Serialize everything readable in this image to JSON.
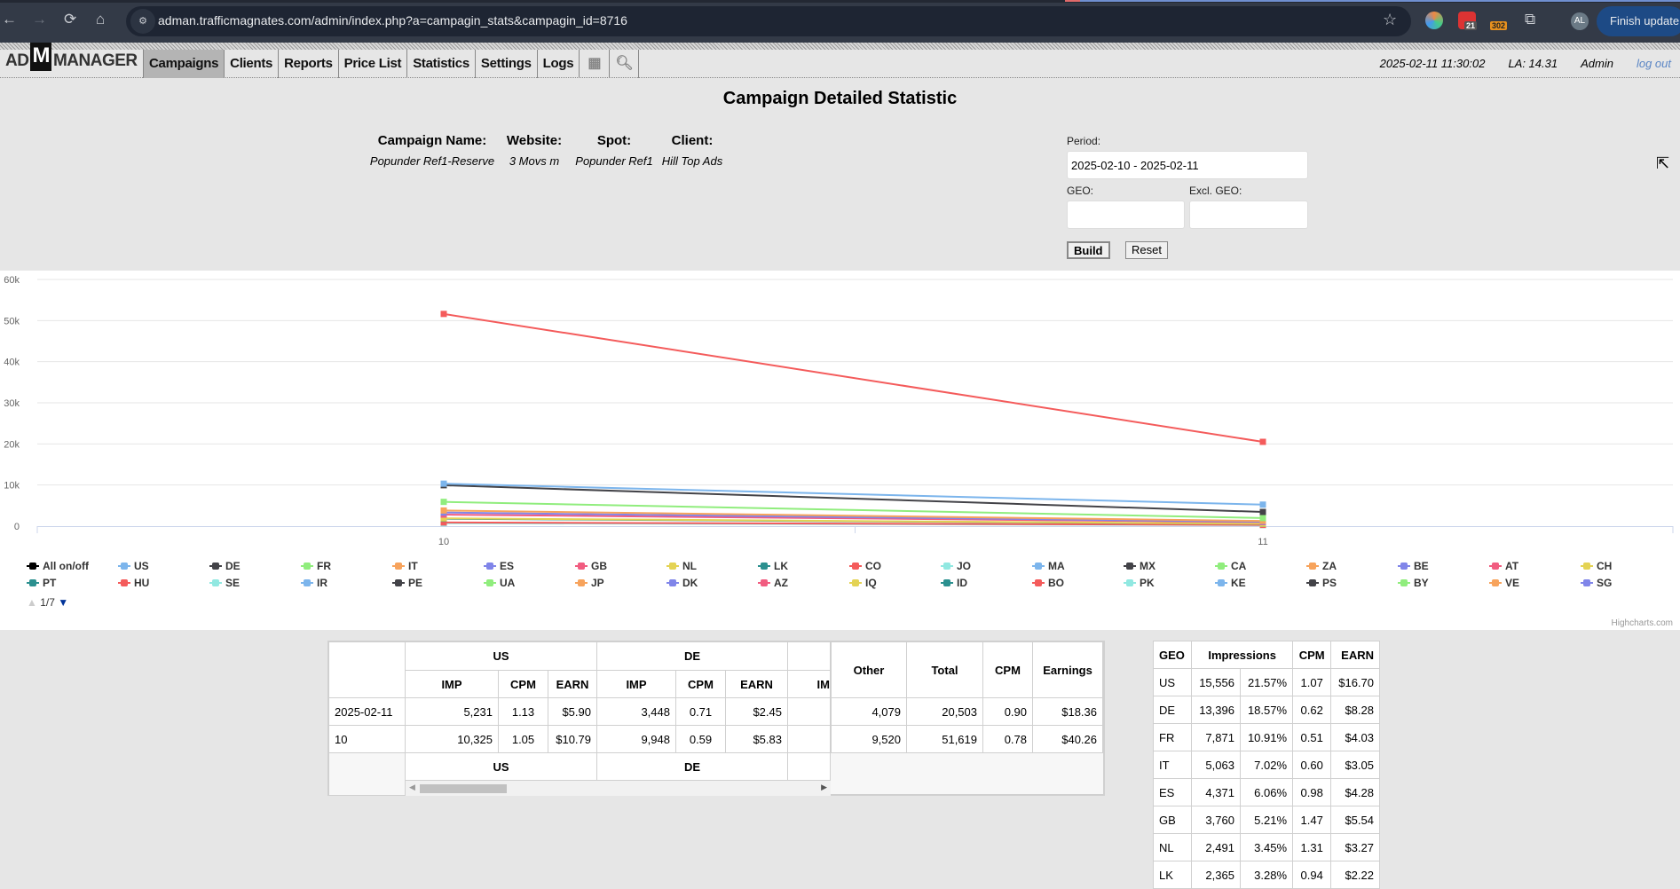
{
  "browser": {
    "url": "adman.trafficmagnates.com/admin/index.php?a=campagin_stats&campagin_id=8716",
    "badge_calendar": "21",
    "badge_302": "302",
    "avatar": "AL",
    "finish_update": "Finish update"
  },
  "app": {
    "logo_left": "AD",
    "logo_m": "M",
    "logo_right": "MANAGER",
    "menu": [
      "Campaigns",
      "Clients",
      "Reports",
      "Price List",
      "Statistics",
      "Settings",
      "Logs"
    ],
    "datetime": "2025-02-11 11:30:02",
    "la": "LA: 14.31",
    "user": "Admin",
    "logout": "log out"
  },
  "page": {
    "title": "Campaign Detailed Statistic",
    "info": [
      {
        "label": "Campaign Name:",
        "value": "Popunder Ref1-Reserve"
      },
      {
        "label": "Website:",
        "value": "3 Movs m"
      },
      {
        "label": "Spot:",
        "value": "Popunder Ref1"
      },
      {
        "label": "Client:",
        "value": "Hill Top Ads"
      }
    ],
    "form": {
      "period_label": "Period:",
      "period_value": "2025-02-10 - 2025-02-11",
      "geo_label": "GEO:",
      "geo_value": "",
      "excl_geo_label": "Excl. GEO:",
      "excl_geo_value": "",
      "build": "Build",
      "reset": "Reset"
    }
  },
  "chart_data": {
    "type": "line",
    "x": [
      "10",
      "11"
    ],
    "ylim": [
      0,
      60000
    ],
    "yticks": [
      "0",
      "10k",
      "20k",
      "30k",
      "40k",
      "50k",
      "60k"
    ],
    "ytick_values": [
      0,
      10000,
      20000,
      30000,
      40000,
      50000,
      60000
    ],
    "credit": "Highcharts.com",
    "series": [
      {
        "name": "Total",
        "color": "#f45b5b",
        "values": [
          51619,
          20503
        ]
      },
      {
        "name": "US",
        "color": "#7cb5ec",
        "values": [
          10325,
          5231
        ]
      },
      {
        "name": "DE",
        "color": "#434348",
        "values": [
          9948,
          3448
        ]
      },
      {
        "name": "FR",
        "color": "#90ed7d",
        "values": [
          5900,
          1971
        ]
      },
      {
        "name": "IT",
        "color": "#f7a35c",
        "values": [
          3800,
          1263
        ]
      },
      {
        "name": "ES",
        "color": "#8085e9",
        "values": [
          3300,
          1071
        ]
      },
      {
        "name": "GB",
        "color": "#f15c80",
        "values": [
          2800,
          960
        ]
      },
      {
        "name": "NL",
        "color": "#e4d354",
        "values": [
          1900,
          591
        ]
      },
      {
        "name": "LK",
        "color": "#2b908f",
        "values": [
          1800,
          565
        ]
      },
      {
        "name": "CO",
        "color": "#f45b5b",
        "values": [
          900,
          300
        ]
      },
      {
        "name": "JO",
        "color": "#91e8e1",
        "values": [
          700,
          250
        ]
      }
    ],
    "legend": {
      "placement": "bottom",
      "page": "1/7",
      "items": [
        {
          "name": "All on/off",
          "color": "#000000"
        },
        {
          "name": "US",
          "color": "#7cb5ec"
        },
        {
          "name": "DE",
          "color": "#434348"
        },
        {
          "name": "FR",
          "color": "#90ed7d"
        },
        {
          "name": "IT",
          "color": "#f7a35c"
        },
        {
          "name": "ES",
          "color": "#8085e9"
        },
        {
          "name": "GB",
          "color": "#f15c80"
        },
        {
          "name": "NL",
          "color": "#e4d354"
        },
        {
          "name": "LK",
          "color": "#2b908f"
        },
        {
          "name": "CO",
          "color": "#f45b5b"
        },
        {
          "name": "JO",
          "color": "#91e8e1"
        },
        {
          "name": "MA",
          "color": "#7cb5ec"
        },
        {
          "name": "MX",
          "color": "#434348"
        },
        {
          "name": "CA",
          "color": "#90ed7d"
        },
        {
          "name": "ZA",
          "color": "#f7a35c"
        },
        {
          "name": "BE",
          "color": "#8085e9"
        },
        {
          "name": "AT",
          "color": "#f15c80"
        },
        {
          "name": "CH",
          "color": "#e4d354"
        },
        {
          "name": "PT",
          "color": "#2b908f"
        },
        {
          "name": "HU",
          "color": "#f45b5b"
        },
        {
          "name": "SE",
          "color": "#91e8e1"
        },
        {
          "name": "IR",
          "color": "#7cb5ec"
        },
        {
          "name": "PE",
          "color": "#434348"
        },
        {
          "name": "UA",
          "color": "#90ed7d"
        },
        {
          "name": "JP",
          "color": "#f7a35c"
        },
        {
          "name": "DK",
          "color": "#8085e9"
        },
        {
          "name": "AZ",
          "color": "#f15c80"
        },
        {
          "name": "IQ",
          "color": "#e4d354"
        },
        {
          "name": "ID",
          "color": "#2b908f"
        },
        {
          "name": "BO",
          "color": "#f45b5b"
        },
        {
          "name": "PK",
          "color": "#91e8e1"
        },
        {
          "name": "KE",
          "color": "#7cb5ec"
        },
        {
          "name": "PS",
          "color": "#434348"
        },
        {
          "name": "BY",
          "color": "#90ed7d"
        },
        {
          "name": "VE",
          "color": "#f7a35c"
        },
        {
          "name": "SG",
          "color": "#8085e9"
        }
      ]
    }
  },
  "date_table": {
    "geo_headers": [
      "US",
      "DE",
      "IM"
    ],
    "sub_headers": [
      "IMP",
      "CPM",
      "EARN"
    ],
    "right_headers": [
      "Other",
      "Total",
      "CPM",
      "Earnings"
    ],
    "rows": [
      {
        "date": "2025-02-11",
        "us": [
          "5,231",
          "1.13",
          "$5.90"
        ],
        "de": [
          "3,448",
          "0.71",
          "$2.45"
        ],
        "other": "4,079",
        "total": "20,503",
        "cpm": "0.90",
        "earnings": "$18.36"
      },
      {
        "date": "10",
        "us": [
          "10,325",
          "1.05",
          "$10.79"
        ],
        "de": [
          "9,948",
          "0.59",
          "$5.83"
        ],
        "other": "9,520",
        "total": "51,619",
        "cpm": "0.78",
        "earnings": "$40.26"
      }
    ],
    "footer": [
      "US",
      "DE"
    ]
  },
  "geo_table": {
    "headers": [
      "GEO",
      "Impressions",
      "CPM",
      "EARN"
    ],
    "rows": [
      [
        "US",
        "15,556",
        "21.57%",
        "1.07",
        "$16.70"
      ],
      [
        "DE",
        "13,396",
        "18.57%",
        "0.62",
        "$8.28"
      ],
      [
        "FR",
        "7,871",
        "10.91%",
        "0.51",
        "$4.03"
      ],
      [
        "IT",
        "5,063",
        "7.02%",
        "0.60",
        "$3.05"
      ],
      [
        "ES",
        "4,371",
        "6.06%",
        "0.98",
        "$4.28"
      ],
      [
        "GB",
        "3,760",
        "5.21%",
        "1.47",
        "$5.54"
      ],
      [
        "NL",
        "2,491",
        "3.45%",
        "1.31",
        "$3.27"
      ],
      [
        "LK",
        "2,365",
        "3.28%",
        "0.94",
        "$2.22"
      ]
    ]
  }
}
